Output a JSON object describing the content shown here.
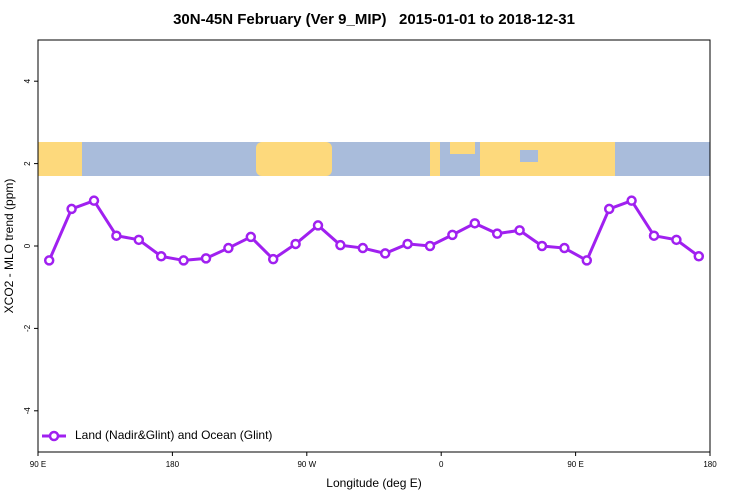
{
  "chart_data": {
    "type": "line",
    "title": "30N-45N February (Ver 9_MIP)   2015-01-01 to 2018-12-31",
    "x_label": "Longitude (deg E)",
    "y_label": "XCO2 - MLO trend (ppm)",
    "x": [
      97.5,
      112.5,
      127.5,
      142.5,
      157.5,
      172.5,
      187.5,
      202.5,
      217.5,
      232.5,
      247.5,
      262.5,
      277.5,
      292.5,
      307.5,
      322.5,
      337.5,
      352.5,
      367.5,
      382.5,
      397.5,
      412.5,
      427.5,
      442.5,
      457.5,
      472.5,
      487.5,
      502.5,
      517.5,
      532.5
    ],
    "series": [
      {
        "name": "Land (Nadir&Glint) and Ocean (Glint)",
        "color": "#a020f0",
        "values": [
          -0.35,
          0.9,
          1.1,
          0.25,
          0.15,
          -0.25,
          -0.35,
          -0.3,
          -0.05,
          0.22,
          -0.32,
          0.05,
          0.5,
          0.02,
          -0.05,
          -0.18,
          0.05,
          0,
          0.27,
          0.55,
          0.3,
          0.38,
          0,
          -0.05,
          -0.35,
          0.9,
          1.1,
          0.25,
          0.15,
          -0.25
        ]
      }
    ],
    "xlim": [
      90,
      540
    ],
    "xticks": [
      {
        "value": 90,
        "label": "90 E"
      },
      {
        "value": 180,
        "label": "180"
      },
      {
        "value": 270,
        "label": "90 W"
      },
      {
        "value": 360,
        "label": "0"
      },
      {
        "value": 450,
        "label": "90 E"
      },
      {
        "value": 540,
        "label": "180"
      }
    ],
    "ylim": [
      -5,
      5
    ],
    "yticks": [
      -4,
      -2,
      0,
      2,
      4
    ],
    "legend": "bottom-left"
  }
}
